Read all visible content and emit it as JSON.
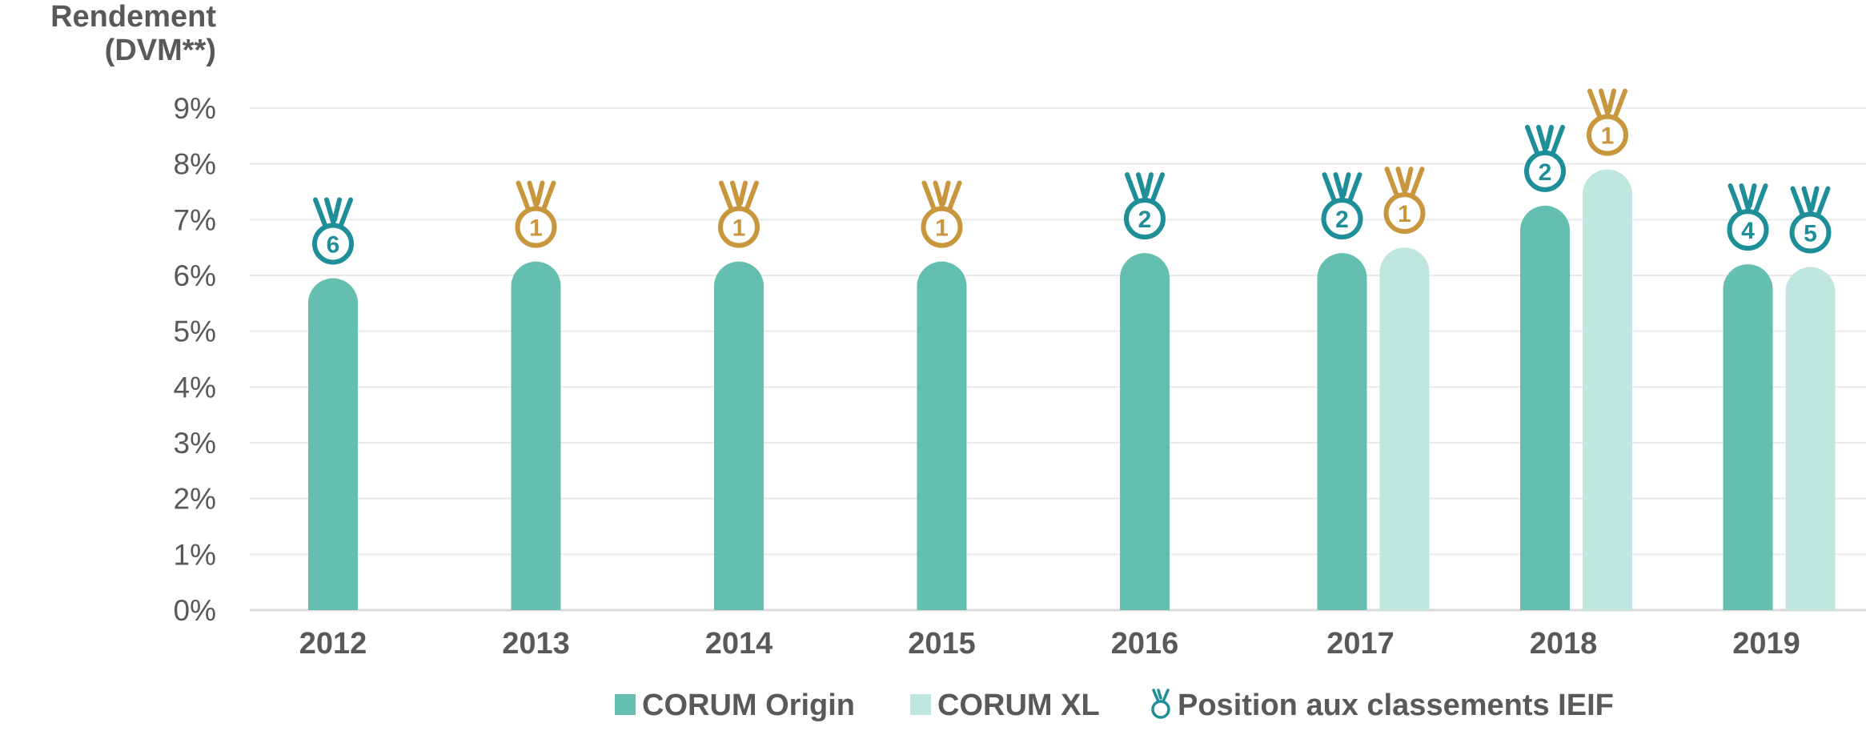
{
  "chart_data": {
    "type": "bar",
    "ylabel_line1": "Rendement",
    "ylabel_line2": "(DVM**)",
    "ylim": [
      0,
      9
    ],
    "yticks": [
      "0%",
      "1%",
      "2%",
      "3%",
      "4%",
      "5%",
      "6%",
      "7%",
      "8%",
      "9%"
    ],
    "categories": [
      "2012",
      "2013",
      "2014",
      "2015",
      "2016",
      "2017",
      "2018",
      "2019"
    ],
    "series": [
      {
        "name": "CORUM Origin",
        "color": "#64bfb0",
        "values": [
          5.95,
          6.25,
          6.25,
          6.25,
          6.4,
          6.4,
          7.25,
          6.2
        ],
        "ranks": [
          "6",
          "1",
          "1",
          "1",
          "2",
          "2",
          "2",
          "4"
        ],
        "rank_colors": [
          "#1e8e98",
          "#c8963c",
          "#c8963c",
          "#c8963c",
          "#1e8e98",
          "#1e8e98",
          "#1e8e98",
          "#1e8e98"
        ]
      },
      {
        "name": "CORUM XL",
        "color": "#bfe6df",
        "values": [
          null,
          null,
          null,
          null,
          null,
          6.5,
          7.9,
          6.15
        ],
        "ranks": [
          null,
          null,
          null,
          null,
          null,
          "1",
          "1",
          "5"
        ],
        "rank_colors": [
          null,
          null,
          null,
          null,
          null,
          "#c8963c",
          "#c8963c",
          "#1e8e98"
        ]
      }
    ],
    "legend": [
      {
        "label": "CORUM Origin",
        "color": "#64bfb0",
        "kind": "square"
      },
      {
        "label": "CORUM XL",
        "color": "#bfe6df",
        "kind": "square"
      },
      {
        "label": "Position aux classements IEIF",
        "color": "#1e8e98",
        "kind": "medal-icon"
      }
    ],
    "grid": true,
    "legend_position": "bottom"
  }
}
